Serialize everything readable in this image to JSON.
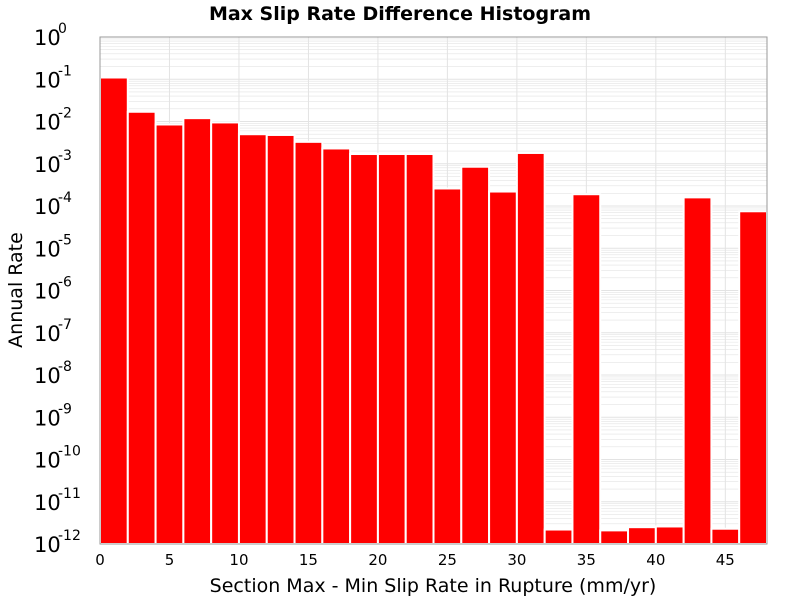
{
  "chart_data": {
    "type": "bar",
    "title": "Max Slip Rate Difference Histogram",
    "xlabel": "Section Max - Min Slip Rate in Rupture (mm/yr)",
    "ylabel": "Annual Rate",
    "yscale": "log",
    "xlim": [
      0,
      48
    ],
    "ylim": [
      1e-12,
      1
    ],
    "bin_width": 2,
    "x_ticks": [
      0,
      5,
      10,
      15,
      20,
      25,
      30,
      35,
      40,
      45
    ],
    "y_tick_exponents": [
      0,
      -1,
      -2,
      -3,
      -4,
      -5,
      -6,
      -7,
      -8,
      -9,
      -10,
      -11,
      -12
    ],
    "y_tick_base": "10",
    "x": [
      1,
      3,
      5,
      7,
      9,
      11,
      13,
      15,
      17,
      19,
      21,
      23,
      25,
      27,
      29,
      31,
      33,
      35,
      37,
      39,
      41,
      43,
      45,
      47
    ],
    "values": [
      0.11,
      0.017,
      0.0085,
      0.012,
      0.0095,
      0.005,
      0.0048,
      0.0033,
      0.0023,
      0.0017,
      0.0017,
      0.0017,
      0.00026,
      0.00085,
      0.00022,
      0.0018,
      2.2e-12,
      0.00019,
      2.1e-12,
      2.5e-12,
      2.6e-12,
      0.00016,
      2.3e-12,
      7.5e-05
    ],
    "colors": {
      "bar": "#ff0000",
      "bar_edge": "#ffffff",
      "grid": "#e3e3e3",
      "frame": "#999999"
    },
    "grid": true,
    "legend": "none"
  }
}
